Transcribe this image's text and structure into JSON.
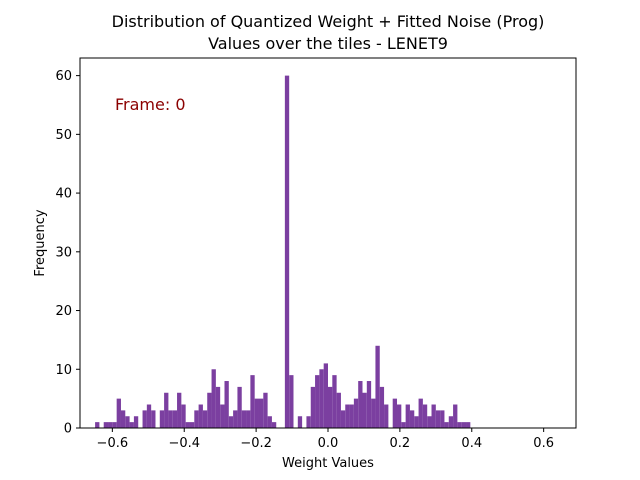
{
  "chart_data": {
    "type": "bar",
    "title_line1": "Distribution of Quantized Weight + Fitted Noise (Prog)",
    "title_line2": "Values over the tiles - LENET9",
    "xlabel": "Weight Values",
    "ylabel": "Frequency",
    "annotation": "Frame: 0",
    "xlim": [
      -0.69,
      0.69
    ],
    "ylim": [
      0,
      63
    ],
    "x_ticks": [
      -0.6,
      -0.4,
      -0.2,
      0.0,
      0.2,
      0.4,
      0.6
    ],
    "x_tick_labels": [
      "−0.6",
      "−0.4",
      "−0.2",
      "0.0",
      "0.2",
      "0.4",
      "0.6"
    ],
    "y_ticks": [
      0,
      10,
      20,
      30,
      40,
      50,
      60
    ],
    "y_tick_labels": [
      "0",
      "10",
      "20",
      "30",
      "40",
      "50",
      "60"
    ],
    "bar_color": "#7b3fa0",
    "bin_start": -0.648,
    "bin_width": 0.012,
    "values": [
      1,
      0,
      1,
      1,
      1,
      5,
      3,
      2,
      1,
      2,
      0,
      3,
      4,
      3,
      0,
      3,
      6,
      3,
      3,
      6,
      4,
      1,
      1,
      3,
      4,
      3,
      6,
      10,
      7,
      4,
      8,
      2,
      3,
      7,
      3,
      3,
      9,
      5,
      5,
      6,
      2,
      1,
      0,
      0,
      60,
      9,
      0,
      2,
      0,
      2,
      7,
      9,
      10,
      11,
      7,
      9,
      6,
      3,
      4,
      4,
      5,
      8,
      6,
      8,
      5,
      14,
      7,
      4,
      0,
      5,
      4,
      1,
      4,
      3,
      2,
      5,
      4,
      2,
      4,
      3,
      3,
      1,
      2,
      4,
      1,
      1,
      1,
      0,
      0,
      0,
      0,
      0
    ]
  }
}
